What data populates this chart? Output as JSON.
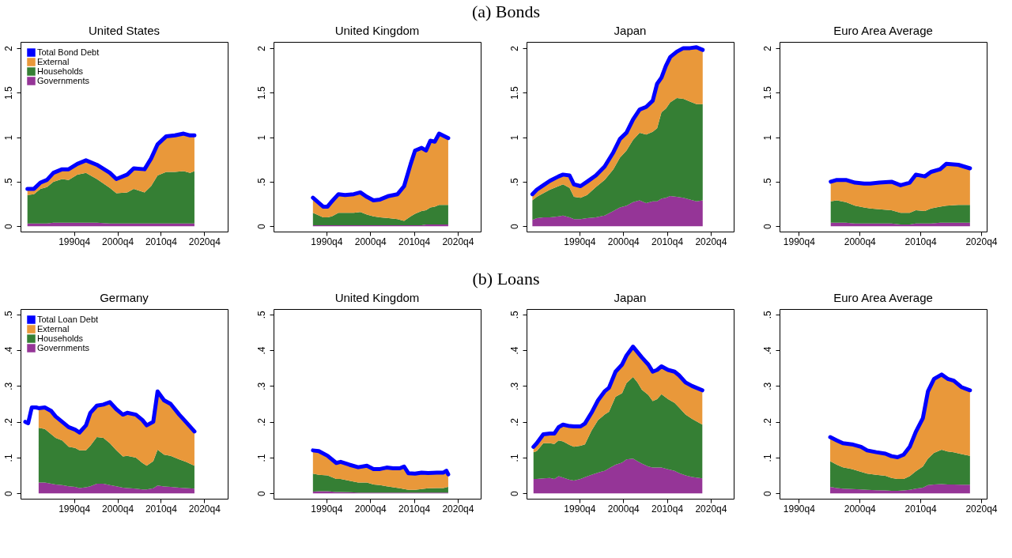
{
  "chart_data": [
    {
      "type": "area",
      "stacked": true,
      "title": "United States",
      "annotations": [
        "(a) Bonds"
      ],
      "legend": "top left",
      "xlim": [
        "1978-06",
        "2026-03"
      ],
      "ylim": [
        -0.06,
        2.07
      ],
      "xticks": [
        {
          "value": "1990-10",
          "label": "1990q4"
        },
        {
          "value": "2000-10",
          "label": "2000q4"
        },
        {
          "value": "2010-10",
          "label": "2010q4"
        },
        {
          "value": "2020-10",
          "label": "2020q4"
        }
      ],
      "yticks": [
        0,
        {
          "value": 0.5,
          "label": ".5"
        },
        1,
        1.5,
        2
      ],
      "x": [
        "1980-01",
        "1981-07",
        "1983-01",
        "1984-07",
        "1986-01",
        "1988-01",
        "1989-07",
        "1991-07",
        "1993-07",
        "1996-01",
        "1999-01",
        "2000-07",
        "2003-01",
        "2004-07",
        "2007-01",
        "2008-07",
        "2010-01",
        "2012-01",
        "2014-01",
        "2016-01",
        "2017-07",
        "2018-07"
      ],
      "series": [
        {
          "name": "Governments",
          "color": "#953597",
          "values": [
            0.03,
            0.03,
            0.03,
            0.03,
            0.04,
            0.04,
            0.04,
            0.04,
            0.04,
            0.04,
            0.03,
            0.03,
            0.03,
            0.03,
            0.03,
            0.03,
            0.03,
            0.03,
            0.03,
            0.03,
            0.03,
            0.03
          ]
        },
        {
          "name": "Households",
          "color": "#357f34",
          "values": [
            0.32,
            0.33,
            0.39,
            0.41,
            0.46,
            0.49,
            0.48,
            0.54,
            0.56,
            0.49,
            0.4,
            0.34,
            0.35,
            0.39,
            0.35,
            0.42,
            0.54,
            0.58,
            0.58,
            0.59,
            0.57,
            0.59
          ]
        },
        {
          "name": "External",
          "color": "#e9983a",
          "values": [
            0.07,
            0.06,
            0.07,
            0.08,
            0.1,
            0.11,
            0.12,
            0.12,
            0.14,
            0.16,
            0.17,
            0.16,
            0.2,
            0.23,
            0.26,
            0.31,
            0.35,
            0.4,
            0.41,
            0.42,
            0.42,
            0.4
          ]
        },
        {
          "name": "Total Bond Debt",
          "type": "line",
          "color": "#0000ff",
          "values": [
            0.42,
            0.42,
            0.49,
            0.52,
            0.6,
            0.64,
            0.64,
            0.7,
            0.74,
            0.69,
            0.6,
            0.53,
            0.58,
            0.65,
            0.64,
            0.76,
            0.92,
            1.01,
            1.02,
            1.04,
            1.02,
            1.02
          ]
        }
      ]
    },
    {
      "type": "area",
      "stacked": true,
      "title": "United Kingdom",
      "xlim": [
        "1978-09",
        "2026-01"
      ],
      "ylim": [
        -0.06,
        2.07
      ],
      "xticks": [
        {
          "value": "1990-10",
          "label": "1990q4"
        },
        {
          "value": "2000-10",
          "label": "2000q4"
        },
        {
          "value": "2010-10",
          "label": "2010q4"
        },
        {
          "value": "2020-10",
          "label": "2020q4"
        }
      ],
      "yticks": [
        0,
        {
          "value": 0.5,
          "label": ".5"
        },
        1,
        1.5,
        2
      ],
      "x": [
        "1987-09",
        "1990-01",
        "1991-01",
        "1992-01",
        "1993-07",
        "1995-01",
        "1997-01",
        "1998-07",
        "2000-01",
        "2001-07",
        "2003-01",
        "2005-01",
        "2007-01",
        "2008-07",
        "2010-01",
        "2011-01",
        "2012-07",
        "2013-07",
        "2014-07",
        "2015-07",
        "2016-07",
        "2018-08"
      ],
      "series": [
        {
          "color": "#953597",
          "values": [
            0.01,
            0.01,
            0.01,
            0.01,
            0.01,
            0.01,
            0.01,
            0.01,
            0.01,
            0.01,
            0.01,
            0.01,
            0.01,
            0.01,
            0.01,
            0.01,
            0.01,
            0.02,
            0.02,
            0.02,
            0.02,
            0.02
          ]
        },
        {
          "color": "#357f34",
          "values": [
            0.14,
            0.09,
            0.09,
            0.1,
            0.14,
            0.14,
            0.14,
            0.15,
            0.12,
            0.1,
            0.09,
            0.08,
            0.07,
            0.05,
            0.1,
            0.13,
            0.16,
            0.16,
            0.19,
            0.2,
            0.22,
            0.22
          ]
        },
        {
          "color": "#e9983a",
          "values": [
            0.17,
            0.12,
            0.12,
            0.17,
            0.21,
            0.2,
            0.21,
            0.22,
            0.2,
            0.18,
            0.2,
            0.25,
            0.28,
            0.39,
            0.59,
            0.71,
            0.71,
            0.67,
            0.75,
            0.73,
            0.8,
            0.75
          ]
        },
        {
          "type": "line",
          "color": "#0000ff",
          "values": [
            0.32,
            0.22,
            0.22,
            0.28,
            0.36,
            0.35,
            0.36,
            0.38,
            0.33,
            0.29,
            0.3,
            0.34,
            0.36,
            0.45,
            0.7,
            0.85,
            0.88,
            0.85,
            0.96,
            0.95,
            1.04,
            0.99
          ]
        }
      ]
    },
    {
      "type": "area",
      "stacked": true,
      "title": "Japan",
      "xlim": [
        "1978-09",
        "2026-01"
      ],
      "ylim": [
        -0.06,
        2.07
      ],
      "xticks": [
        {
          "value": "1990-10",
          "label": "1990q4"
        },
        {
          "value": "2000-10",
          "label": "2000q4"
        },
        {
          "value": "2010-10",
          "label": "2010q4"
        },
        {
          "value": "2020-10",
          "label": "2020q4"
        }
      ],
      "yticks": [
        0,
        {
          "value": 0.5,
          "label": ".5"
        },
        1,
        1.5,
        2
      ],
      "x": [
        "1980-01",
        "1981-01",
        "1982-07",
        "1984-01",
        "1986-01",
        "1987-01",
        "1988-07",
        "1989-07",
        "1991-01",
        "1992-07",
        "1994-07",
        "1996-07",
        "1998-07",
        "2000-01",
        "2001-07",
        "2003-01",
        "2004-07",
        "2006-01",
        "2007-07",
        "2008-07",
        "2009-07",
        "2010-07",
        "2011-07",
        "2013-01",
        "2014-07",
        "2016-01",
        "2017-07",
        "2018-12"
      ],
      "series": [
        {
          "color": "#953597",
          "values": [
            0.07,
            0.09,
            0.1,
            0.1,
            0.11,
            0.12,
            0.1,
            0.08,
            0.08,
            0.09,
            0.1,
            0.12,
            0.17,
            0.21,
            0.23,
            0.27,
            0.29,
            0.26,
            0.28,
            0.28,
            0.31,
            0.32,
            0.34,
            0.33,
            0.32,
            0.3,
            0.28,
            0.29
          ]
        },
        {
          "color": "#357f34",
          "values": [
            0.22,
            0.24,
            0.27,
            0.31,
            0.34,
            0.35,
            0.33,
            0.25,
            0.24,
            0.26,
            0.34,
            0.4,
            0.47,
            0.56,
            0.62,
            0.7,
            0.76,
            0.77,
            0.78,
            0.82,
            0.97,
            1.0,
            1.05,
            1.11,
            1.11,
            1.1,
            1.09,
            1.08
          ]
        },
        {
          "color": "#e9983a",
          "values": [
            0.07,
            0.08,
            0.09,
            0.1,
            0.11,
            0.11,
            0.14,
            0.14,
            0.13,
            0.15,
            0.13,
            0.15,
            0.19,
            0.21,
            0.2,
            0.23,
            0.26,
            0.31,
            0.35,
            0.5,
            0.39,
            0.48,
            0.51,
            0.52,
            0.57,
            0.6,
            0.64,
            0.61
          ]
        },
        {
          "type": "line",
          "color": "#0000ff",
          "values": [
            0.36,
            0.41,
            0.46,
            0.51,
            0.56,
            0.58,
            0.57,
            0.47,
            0.45,
            0.5,
            0.57,
            0.67,
            0.83,
            0.98,
            1.05,
            1.2,
            1.31,
            1.34,
            1.41,
            1.6,
            1.67,
            1.8,
            1.9,
            1.96,
            2.0,
            2.0,
            2.01,
            1.98
          ]
        }
      ]
    },
    {
      "type": "area",
      "stacked": true,
      "title": "Euro Area Average",
      "xlim": [
        "1987-08",
        "2021-09"
      ],
      "ylim": [
        -0.06,
        2.07
      ],
      "xticks": [
        {
          "value": "1990-10",
          "label": "1990q4"
        },
        {
          "value": "2000-10",
          "label": "2000q4"
        },
        {
          "value": "2010-10",
          "label": "2010q4"
        },
        {
          "value": "2020-10",
          "label": "2020q4"
        }
      ],
      "yticks": [
        0,
        {
          "value": 0.5,
          "label": ".5"
        },
        1,
        1.5,
        2
      ],
      "x": [
        "1996-01",
        "1997-01",
        "1998-07",
        "2000-01",
        "2001-07",
        "2002-07",
        "2004-01",
        "2006-01",
        "2007-07",
        "2009-01",
        "2010-01",
        "2011-07",
        "2012-07",
        "2014-01",
        "2015-01",
        "2017-01",
        "2018-12"
      ],
      "series": [
        {
          "color": "#953597",
          "values": [
            0.04,
            0.04,
            0.04,
            0.03,
            0.03,
            0.03,
            0.03,
            0.03,
            0.02,
            0.02,
            0.03,
            0.03,
            0.03,
            0.04,
            0.04,
            0.04,
            0.04
          ]
        },
        {
          "color": "#357f34",
          "values": [
            0.24,
            0.25,
            0.23,
            0.2,
            0.18,
            0.17,
            0.16,
            0.15,
            0.13,
            0.13,
            0.15,
            0.14,
            0.17,
            0.18,
            0.19,
            0.2,
            0.2
          ]
        },
        {
          "color": "#e9983a",
          "values": [
            0.22,
            0.23,
            0.25,
            0.26,
            0.27,
            0.28,
            0.3,
            0.32,
            0.31,
            0.34,
            0.4,
            0.39,
            0.41,
            0.42,
            0.47,
            0.45,
            0.41
          ]
        },
        {
          "type": "line",
          "color": "#0000ff",
          "values": [
            0.5,
            0.52,
            0.52,
            0.49,
            0.48,
            0.48,
            0.49,
            0.5,
            0.46,
            0.49,
            0.58,
            0.56,
            0.61,
            0.64,
            0.7,
            0.69,
            0.65
          ]
        }
      ]
    },
    {
      "type": "area",
      "stacked": true,
      "title": "Germany",
      "annotations": [
        "(b) Loans"
      ],
      "legend": "top left",
      "xlim": [
        "1978-06",
        "2026-03"
      ],
      "ylim": [
        -0.015,
        0.515
      ],
      "xticks": [
        {
          "value": "1990-10",
          "label": "1990q4"
        },
        {
          "value": "2000-10",
          "label": "2000q4"
        },
        {
          "value": "2010-10",
          "label": "2010q4"
        },
        {
          "value": "2020-10",
          "label": "2020q4"
        }
      ],
      "yticks": [
        0,
        {
          "value": 0.1,
          "label": ".1"
        },
        {
          "value": 0.2,
          "label": ".2"
        },
        {
          "value": 0.3,
          "label": ".3"
        },
        {
          "value": 0.4,
          "label": ".4"
        },
        {
          "value": 0.5,
          "label": ".5"
        }
      ],
      "x": [
        "1982-08",
        "1984-01",
        "1985-07",
        "1986-07",
        "1988-01",
        "1989-07",
        "1991-01",
        "1992-01",
        "1993-07",
        "1994-07",
        "1996-01",
        "1997-07",
        "1999-01",
        "2000-07",
        "2002-01",
        "2003-01",
        "2005-01",
        "2006-07",
        "2007-07",
        "2009-01",
        "2010-01",
        "2011-07",
        "2013-01",
        "2015-01",
        "2016-07",
        "2018-07"
      ],
      "series": [
        {
          "name": "Governments",
          "color": "#953597",
          "values": [
            0.03,
            0.03,
            0.027,
            0.025,
            0.023,
            0.02,
            0.018,
            0.015,
            0.017,
            0.02,
            0.027,
            0.027,
            0.023,
            0.02,
            0.016,
            0.015,
            0.013,
            0.011,
            0.011,
            0.014,
            0.022,
            0.019,
            0.018,
            0.016,
            0.015,
            0.013
          ]
        },
        {
          "name": "Households",
          "color": "#357f34",
          "values": [
            0.153,
            0.15,
            0.138,
            0.13,
            0.125,
            0.11,
            0.109,
            0.105,
            0.103,
            0.113,
            0.13,
            0.128,
            0.117,
            0.1,
            0.087,
            0.09,
            0.087,
            0.074,
            0.066,
            0.076,
            0.1,
            0.089,
            0.087,
            0.079,
            0.073,
            0.064
          ]
        },
        {
          "name": "External",
          "color": "#e9983a",
          "values": [
            0.055,
            0.06,
            0.065,
            0.06,
            0.052,
            0.055,
            0.051,
            0.05,
            0.07,
            0.092,
            0.088,
            0.093,
            0.115,
            0.115,
            0.117,
            0.12,
            0.12,
            0.12,
            0.113,
            0.11,
            0.163,
            0.152,
            0.145,
            0.125,
            0.112,
            0.096
          ]
        },
        {
          "name": "Total Loan Debt",
          "type": "line",
          "color": "#0000ff",
          "x": [
            "1979-07",
            "1980-03",
            "1981-01",
            "1982-01",
            "1982-08",
            "1984-01",
            "1985-07",
            "1986-07",
            "1988-01",
            "1989-07",
            "1991-01",
            "1992-01",
            "1993-07",
            "1994-07",
            "1996-01",
            "1997-07",
            "1999-01",
            "2000-07",
            "2002-01",
            "2003-01",
            "2005-01",
            "2006-07",
            "2007-07",
            "2009-01",
            "2010-01",
            "2011-07",
            "2013-01",
            "2015-01",
            "2016-07",
            "2018-07"
          ],
          "values": [
            0.2,
            0.196,
            0.24,
            0.24,
            0.238,
            0.24,
            0.23,
            0.215,
            0.2,
            0.185,
            0.178,
            0.17,
            0.19,
            0.225,
            0.245,
            0.248,
            0.255,
            0.235,
            0.22,
            0.225,
            0.22,
            0.205,
            0.19,
            0.2,
            0.285,
            0.26,
            0.25,
            0.22,
            0.2,
            0.173
          ]
        }
      ]
    },
    {
      "type": "area",
      "stacked": true,
      "title": "United Kingdom",
      "xlim": [
        "1978-09",
        "2026-01"
      ],
      "ylim": [
        -0.015,
        0.515
      ],
      "xticks": [
        {
          "value": "1990-10",
          "label": "1990q4"
        },
        {
          "value": "2000-10",
          "label": "2000q4"
        },
        {
          "value": "2010-10",
          "label": "2010q4"
        },
        {
          "value": "2020-10",
          "label": "2020q4"
        }
      ],
      "yticks": [
        0,
        {
          "value": 0.1,
          "label": ".1"
        },
        {
          "value": 0.2,
          "label": ".2"
        },
        {
          "value": 0.3,
          "label": ".3"
        },
        {
          "value": 0.4,
          "label": ".4"
        },
        {
          "value": 0.5,
          "label": ".5"
        }
      ],
      "x": [
        "1987-09",
        "1989-01",
        "1991-01",
        "1993-01",
        "1994-01",
        "1996-01",
        "1998-01",
        "2000-01",
        "2001-07",
        "2003-01",
        "2004-07",
        "2006-01",
        "2007-07",
        "2008-07",
        "2009-07",
        "2011-01",
        "2012-07",
        "2014-01",
        "2016-01",
        "2017-07",
        "2018-03",
        "2018-08"
      ],
      "series": [
        {
          "color": "#953597",
          "values": [
            0.005,
            0.006,
            0.006,
            0.004,
            0.004,
            0.003,
            0.002,
            0.002,
            0.002,
            0.002,
            0.002,
            0.002,
            0.002,
            0.002,
            0.002,
            0.002,
            0.002,
            0.002,
            0.002,
            0.002,
            0.002,
            0.002
          ]
        },
        {
          "color": "#357f34",
          "values": [
            0.05,
            0.046,
            0.044,
            0.036,
            0.036,
            0.032,
            0.028,
            0.028,
            0.023,
            0.021,
            0.018,
            0.015,
            0.012,
            0.01,
            0.008,
            0.008,
            0.01,
            0.012,
            0.013,
            0.013,
            0.015,
            0.016
          ]
        },
        {
          "color": "#e9983a",
          "values": [
            0.065,
            0.066,
            0.055,
            0.045,
            0.048,
            0.045,
            0.043,
            0.047,
            0.043,
            0.045,
            0.052,
            0.053,
            0.056,
            0.063,
            0.046,
            0.045,
            0.046,
            0.043,
            0.043,
            0.043,
            0.046,
            0.035
          ]
        },
        {
          "type": "line",
          "color": "#0000ff",
          "values": [
            0.12,
            0.118,
            0.105,
            0.085,
            0.088,
            0.08,
            0.073,
            0.077,
            0.068,
            0.068,
            0.072,
            0.07,
            0.07,
            0.075,
            0.056,
            0.055,
            0.058,
            0.057,
            0.058,
            0.058,
            0.063,
            0.053
          ]
        }
      ]
    },
    {
      "type": "area",
      "stacked": true,
      "title": "Japan",
      "xlim": [
        "1978-09",
        "2026-01"
      ],
      "ylim": [
        -0.015,
        0.515
      ],
      "xticks": [
        {
          "value": "1990-10",
          "label": "1990q4"
        },
        {
          "value": "2000-10",
          "label": "2000q4"
        },
        {
          "value": "2010-10",
          "label": "2010q4"
        },
        {
          "value": "2020-10",
          "label": "2020q4"
        }
      ],
      "yticks": [
        0,
        {
          "value": 0.1,
          "label": ".1"
        },
        {
          "value": 0.2,
          "label": ".2"
        },
        {
          "value": 0.3,
          "label": ".3"
        },
        {
          "value": 0.4,
          "label": ".4"
        },
        {
          "value": 0.5,
          "label": ".5"
        }
      ],
      "x": [
        "1980-04",
        "1981-01",
        "1982-07",
        "1984-01",
        "1985-01",
        "1986-01",
        "1987-01",
        "1988-07",
        "1989-07",
        "1991-01",
        "1992-01",
        "1993-07",
        "1995-01",
        "1996-07",
        "1997-07",
        "1999-01",
        "2000-07",
        "2001-07",
        "2003-01",
        "2004-01",
        "2005-01",
        "2006-07",
        "2007-07",
        "2008-07",
        "2009-07",
        "2011-01",
        "2012-07",
        "2013-07",
        "2015-01",
        "2016-07",
        "2018-11"
      ],
      "series": [
        {
          "color": "#953597",
          "values": [
            0.04,
            0.04,
            0.042,
            0.043,
            0.04,
            0.048,
            0.044,
            0.038,
            0.036,
            0.04,
            0.045,
            0.052,
            0.058,
            0.063,
            0.07,
            0.08,
            0.086,
            0.095,
            0.097,
            0.09,
            0.083,
            0.075,
            0.072,
            0.072,
            0.072,
            0.067,
            0.063,
            0.057,
            0.05,
            0.046,
            0.042
          ]
        },
        {
          "color": "#357f34",
          "values": [
            0.075,
            0.078,
            0.098,
            0.097,
            0.098,
            0.1,
            0.101,
            0.097,
            0.094,
            0.093,
            0.092,
            0.123,
            0.147,
            0.157,
            0.158,
            0.19,
            0.194,
            0.213,
            0.228,
            0.22,
            0.207,
            0.2,
            0.186,
            0.191,
            0.205,
            0.196,
            0.19,
            0.183,
            0.17,
            0.162,
            0.15
          ]
        },
        {
          "color": "#e9983a",
          "values": [
            0.015,
            0.022,
            0.025,
            0.027,
            0.029,
            0.037,
            0.047,
            0.053,
            0.057,
            0.054,
            0.058,
            0.05,
            0.055,
            0.065,
            0.067,
            0.07,
            0.08,
            0.077,
            0.085,
            0.085,
            0.09,
            0.085,
            0.082,
            0.082,
            0.078,
            0.082,
            0.087,
            0.09,
            0.09,
            0.092,
            0.096
          ]
        },
        {
          "type": "line",
          "color": "#0000ff",
          "values": [
            0.13,
            0.14,
            0.165,
            0.167,
            0.167,
            0.185,
            0.192,
            0.188,
            0.187,
            0.187,
            0.195,
            0.225,
            0.26,
            0.285,
            0.295,
            0.34,
            0.36,
            0.385,
            0.41,
            0.395,
            0.38,
            0.36,
            0.34,
            0.345,
            0.355,
            0.345,
            0.34,
            0.33,
            0.31,
            0.3,
            0.288
          ]
        }
      ]
    },
    {
      "type": "area",
      "stacked": true,
      "title": "Euro Area Average",
      "xlim": [
        "1987-08",
        "2021-09"
      ],
      "ylim": [
        -0.015,
        0.515
      ],
      "xticks": [
        {
          "value": "1990-10",
          "label": "1990q4"
        },
        {
          "value": "2000-10",
          "label": "2000q4"
        },
        {
          "value": "2010-10",
          "label": "2010q4"
        },
        {
          "value": "2020-10",
          "label": "2020q4"
        }
      ],
      "yticks": [
        0,
        {
          "value": 0.1,
          "label": ".1"
        },
        {
          "value": 0.2,
          "label": ".2"
        },
        {
          "value": 0.3,
          "label": ".3"
        },
        {
          "value": 0.4,
          "label": ".4"
        },
        {
          "value": 0.5,
          "label": ".5"
        }
      ],
      "x": [
        "1995-12",
        "1997-01",
        "1998-01",
        "1999-07",
        "2001-01",
        "2002-01",
        "2003-07",
        "2005-01",
        "2006-01",
        "2007-01",
        "2008-01",
        "2009-01",
        "2010-01",
        "2011-03",
        "2012-01",
        "2013-01",
        "2014-04",
        "2015-04",
        "2016-04",
        "2017-07",
        "2018-12"
      ],
      "series": [
        {
          "color": "#953597",
          "values": [
            0.018,
            0.015,
            0.013,
            0.012,
            0.011,
            0.01,
            0.009,
            0.008,
            0.007,
            0.007,
            0.008,
            0.01,
            0.013,
            0.016,
            0.023,
            0.025,
            0.026,
            0.025,
            0.025,
            0.024,
            0.024
          ]
        },
        {
          "color": "#357f34",
          "values": [
            0.072,
            0.065,
            0.06,
            0.056,
            0.049,
            0.045,
            0.043,
            0.041,
            0.036,
            0.033,
            0.032,
            0.038,
            0.049,
            0.059,
            0.074,
            0.088,
            0.096,
            0.092,
            0.09,
            0.086,
            0.081
          ]
        },
        {
          "color": "#e9983a",
          "values": [
            0.067,
            0.068,
            0.067,
            0.069,
            0.07,
            0.065,
            0.063,
            0.062,
            0.061,
            0.061,
            0.068,
            0.082,
            0.11,
            0.135,
            0.188,
            0.207,
            0.21,
            0.203,
            0.2,
            0.187,
            0.183
          ]
        },
        {
          "type": "line",
          "color": "#0000ff",
          "values": [
            0.157,
            0.148,
            0.14,
            0.137,
            0.13,
            0.12,
            0.115,
            0.111,
            0.104,
            0.101,
            0.108,
            0.13,
            0.172,
            0.21,
            0.285,
            0.32,
            0.332,
            0.32,
            0.315,
            0.297,
            0.288
          ]
        }
      ]
    }
  ]
}
